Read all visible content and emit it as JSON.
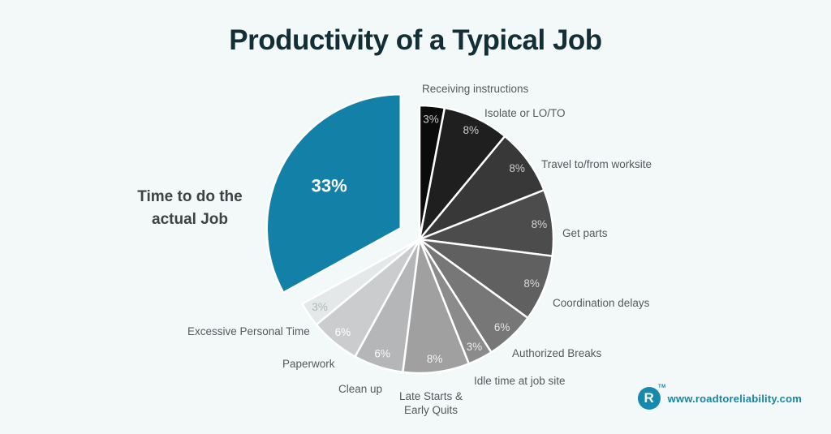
{
  "title": "Productivity of a Typical Job",
  "page": {
    "background": "#f3f8f9"
  },
  "footer": {
    "logo_letter": "R",
    "trademark": "TM",
    "website": "www.roadtoreliability.com",
    "brand_color": "#1486a6"
  },
  "chart_data": {
    "type": "pie",
    "title": "Productivity of a Typical Job",
    "unit": "%",
    "total": 100,
    "start_angle_deg": 0,
    "direction": "clockwise",
    "legend_position": "labels-around-slices",
    "highlight_color": "#1380a7",
    "slices": [
      {
        "label": "Receiving instructions",
        "value": 3,
        "color": "#0b0b0b",
        "value_label_color": "#c9c9c9"
      },
      {
        "label": "Isolate or LO/TO",
        "value": 8,
        "color": "#1f1f1f",
        "value_label_color": "#c9c9c9"
      },
      {
        "label": "Travel to/from worksite",
        "value": 8,
        "color": "#383838",
        "value_label_color": "#cdcdcd"
      },
      {
        "label": "Get parts",
        "value": 8,
        "color": "#4c4c4c",
        "value_label_color": "#d3d3d3"
      },
      {
        "label": "Coordination delays",
        "value": 8,
        "color": "#606060",
        "value_label_color": "#d9d9d9"
      },
      {
        "label": "Authorized Breaks",
        "value": 6,
        "color": "#777777",
        "value_label_color": "#e2e2e2"
      },
      {
        "label": "Idle time at job site",
        "value": 3,
        "color": "#8b8b8b",
        "value_label_color": "#ebebeb"
      },
      {
        "label": "Late Starts & Early Quits",
        "value": 8,
        "color": "#a0a0a0",
        "value_label_color": "#f4f4f4"
      },
      {
        "label": "Clean up",
        "value": 6,
        "color": "#b4b6b7",
        "value_label_color": "#fbfbfb"
      },
      {
        "label": "Paperwork",
        "value": 6,
        "color": "#cacccd",
        "value_label_color": "#ffffff"
      },
      {
        "label": "Excessive Personal Time",
        "value": 3,
        "color": "#e4e8e9",
        "value_label_color": "#b2b8ba"
      },
      {
        "label": "Time to do the actual Job",
        "value": 33,
        "color": "#1380a7",
        "value_label_color": "#ffffff",
        "highlight": true,
        "explode": 27,
        "value_label_factor": 0.62
      }
    ]
  }
}
